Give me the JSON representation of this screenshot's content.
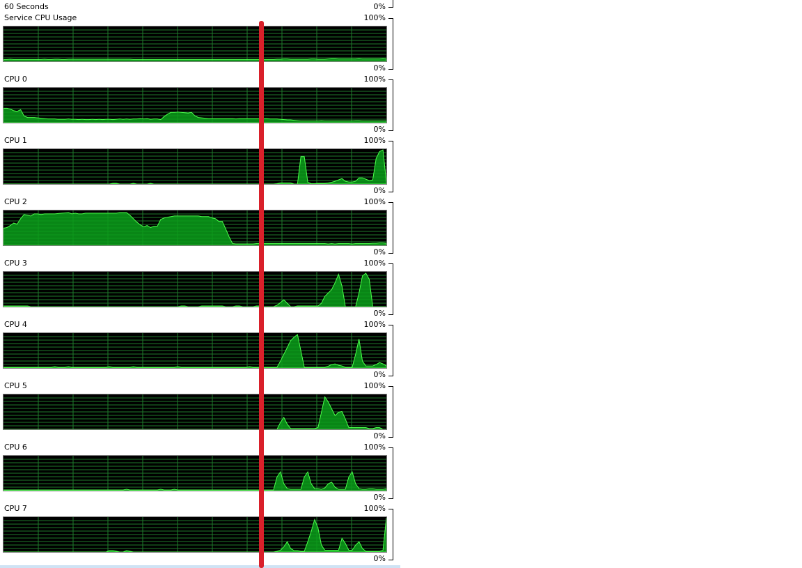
{
  "header": {
    "time_span": "60 Seconds",
    "top_pct": "0%"
  },
  "scale": {
    "max": "100%",
    "min": "0%"
  },
  "colors": {
    "grid": "#1f7a2c",
    "fill": "#0b9e1a",
    "line": "#4cff4c",
    "annotation": "#d9202a"
  },
  "graphs": [
    {
      "title": "Service CPU Usage",
      "usage": [
        5,
        5,
        6,
        5,
        5,
        5,
        5,
        5,
        5,
        5,
        5,
        5,
        6,
        5,
        5,
        6,
        6,
        5,
        5,
        6,
        6,
        6,
        6,
        6,
        6,
        6,
        6,
        6,
        6,
        6,
        6,
        6,
        6,
        6,
        6,
        6,
        6,
        6,
        5,
        5,
        5,
        5,
        5,
        5,
        5,
        5,
        5,
        5,
        5,
        5,
        5,
        5,
        5,
        5,
        5,
        5,
        5,
        5,
        5,
        5,
        5,
        5,
        5,
        5,
        5,
        5,
        5,
        5,
        5,
        5,
        5,
        5,
        5,
        5,
        5,
        5,
        5,
        5,
        5,
        5,
        6,
        6,
        7,
        7,
        6,
        6,
        6,
        6,
        6,
        6,
        7,
        7,
        6,
        6,
        6,
        7,
        8,
        8,
        7,
        7,
        7,
        7,
        7,
        7,
        8,
        7,
        7,
        7,
        7,
        7,
        7,
        8,
        7
      ]
    },
    {
      "title": "CPU 0",
      "usage": [
        42,
        42,
        40,
        35,
        33,
        38,
        20,
        15,
        15,
        15,
        14,
        13,
        12,
        11,
        11,
        11,
        10,
        10,
        10,
        11,
        10,
        10,
        9,
        10,
        9,
        9,
        10,
        9,
        10,
        9,
        10,
        10,
        9,
        10,
        11,
        10,
        11,
        10,
        11,
        11,
        12,
        11,
        12,
        10,
        11,
        11,
        9,
        18,
        25,
        30,
        30,
        31,
        30,
        29,
        28,
        30,
        20,
        15,
        14,
        13,
        12,
        12,
        12,
        12,
        12,
        12,
        12,
        12,
        11,
        12,
        12,
        12,
        12,
        12,
        12,
        12,
        12,
        12,
        11,
        11,
        11,
        10,
        9,
        8,
        8,
        7,
        6,
        5,
        5,
        5,
        5,
        5,
        5,
        6,
        5,
        5,
        5,
        5,
        5,
        5,
        5,
        5,
        5,
        6,
        6,
        5,
        5,
        5,
        5,
        5,
        5,
        5,
        5
      ]
    },
    {
      "title": "CPU 1",
      "usage": [
        0,
        0,
        0,
        0,
        0,
        0,
        0,
        0,
        0,
        0,
        0,
        0,
        0,
        0,
        0,
        0,
        0,
        0,
        0,
        0,
        0,
        0,
        0,
        0,
        0,
        0,
        0,
        0,
        0,
        0,
        0,
        0,
        2,
        2,
        0,
        0,
        0,
        0,
        2,
        0,
        0,
        0,
        0,
        2,
        0,
        0,
        0,
        0,
        0,
        0,
        0,
        0,
        0,
        0,
        0,
        0,
        0,
        0,
        0,
        0,
        0,
        0,
        0,
        0,
        0,
        0,
        0,
        0,
        0,
        0,
        0,
        0,
        0,
        0,
        0,
        0,
        0,
        0,
        0,
        0,
        1,
        3,
        3,
        3,
        3,
        0,
        0,
        80,
        80,
        5,
        1,
        1,
        2,
        2,
        2,
        3,
        5,
        8,
        12,
        16,
        8,
        6,
        6,
        8,
        18,
        18,
        14,
        10,
        12,
        75,
        95,
        100,
        6
      ]
    },
    {
      "title": "CPU 2",
      "usage": [
        50,
        52,
        58,
        65,
        62,
        78,
        90,
        88,
        86,
        92,
        92,
        90,
        92,
        92,
        92,
        92,
        93,
        94,
        95,
        96,
        92,
        94,
        92,
        92,
        94,
        94,
        94,
        94,
        94,
        94,
        94,
        94,
        94,
        94,
        96,
        96,
        96,
        88,
        78,
        68,
        60,
        54,
        58,
        52,
        56,
        56,
        76,
        80,
        82,
        84,
        86,
        86,
        86,
        86,
        86,
        86,
        86,
        86,
        84,
        84,
        84,
        80,
        78,
        70,
        70,
        48,
        25,
        5,
        4,
        4,
        4,
        4,
        4,
        4,
        5,
        5,
        5,
        5,
        5,
        5,
        5,
        5,
        5,
        5,
        5,
        5,
        5,
        5,
        5,
        5,
        5,
        5,
        5,
        5,
        5,
        4,
        5,
        4,
        5,
        5,
        5,
        5,
        4,
        5,
        5,
        5,
        5,
        5,
        6,
        6,
        7,
        7,
        6
      ]
    },
    {
      "title": "CPU 3",
      "usage": [
        2,
        2,
        2,
        2,
        2,
        2,
        2,
        2,
        0,
        0,
        0,
        0,
        0,
        0,
        0,
        0,
        0,
        0,
        0,
        0,
        0,
        0,
        0,
        0,
        0,
        0,
        0,
        0,
        0,
        0,
        0,
        0,
        0,
        0,
        0,
        0,
        0,
        0,
        0,
        0,
        0,
        0,
        0,
        0,
        0,
        0,
        0,
        0,
        0,
        0,
        0,
        0,
        2,
        2,
        0,
        0,
        0,
        0,
        2,
        2,
        2,
        2,
        2,
        2,
        2,
        0,
        0,
        0,
        2,
        2,
        0,
        0,
        0,
        0,
        2,
        2,
        0,
        0,
        0,
        0,
        4,
        12,
        20,
        10,
        0,
        0,
        2,
        2,
        2,
        2,
        2,
        2,
        2,
        10,
        30,
        40,
        50,
        70,
        95,
        60,
        0,
        0,
        0,
        0,
        40,
        90,
        98,
        80,
        0,
        0,
        0,
        0,
        0
      ]
    },
    {
      "title": "CPU 4",
      "usage": [
        2,
        2,
        2,
        2,
        2,
        2,
        2,
        2,
        2,
        2,
        2,
        2,
        2,
        2,
        2,
        4,
        2,
        2,
        2,
        4,
        2,
        2,
        2,
        2,
        2,
        2,
        2,
        2,
        2,
        2,
        2,
        4,
        2,
        2,
        2,
        2,
        2,
        2,
        4,
        2,
        2,
        2,
        2,
        2,
        2,
        2,
        2,
        2,
        2,
        2,
        2,
        4,
        2,
        2,
        2,
        2,
        2,
        2,
        2,
        2,
        2,
        2,
        2,
        2,
        2,
        2,
        2,
        2,
        2,
        2,
        2,
        2,
        4,
        2,
        2,
        2,
        2,
        2,
        2,
        2,
        2,
        20,
        40,
        60,
        80,
        90,
        98,
        50,
        2,
        2,
        2,
        2,
        2,
        2,
        2,
        5,
        10,
        12,
        8,
        6,
        2,
        2,
        2,
        40,
        85,
        20,
        6,
        6,
        6,
        10,
        16,
        12,
        6
      ]
    },
    {
      "title": "CPU 5",
      "usage": [
        0,
        0,
        0,
        0,
        0,
        0,
        0,
        0,
        0,
        0,
        0,
        0,
        0,
        0,
        0,
        0,
        0,
        0,
        0,
        0,
        0,
        0,
        0,
        0,
        0,
        0,
        0,
        0,
        0,
        0,
        0,
        0,
        0,
        0,
        0,
        0,
        0,
        0,
        0,
        0,
        0,
        0,
        0,
        0,
        0,
        0,
        0,
        0,
        0,
        0,
        0,
        0,
        0,
        0,
        0,
        0,
        0,
        0,
        0,
        0,
        0,
        0,
        0,
        0,
        0,
        0,
        0,
        0,
        0,
        0,
        0,
        0,
        0,
        0,
        0,
        0,
        0,
        0,
        0,
        0,
        0,
        20,
        35,
        15,
        2,
        2,
        2,
        2,
        2,
        2,
        2,
        2,
        5,
        50,
        95,
        80,
        60,
        40,
        50,
        52,
        30,
        5,
        5,
        5,
        5,
        5,
        5,
        2,
        2,
        5,
        5,
        0,
        0
      ]
    },
    {
      "title": "CPU 6",
      "usage": [
        2,
        2,
        2,
        2,
        2,
        2,
        2,
        2,
        2,
        2,
        2,
        2,
        2,
        2,
        2,
        2,
        2,
        2,
        2,
        2,
        2,
        2,
        2,
        2,
        2,
        2,
        2,
        2,
        2,
        2,
        2,
        2,
        2,
        2,
        2,
        2,
        4,
        2,
        2,
        2,
        2,
        2,
        2,
        2,
        2,
        2,
        4,
        2,
        2,
        2,
        4,
        2,
        2,
        2,
        2,
        2,
        2,
        2,
        2,
        2,
        2,
        2,
        2,
        2,
        2,
        2,
        2,
        2,
        2,
        2,
        2,
        2,
        2,
        2,
        2,
        2,
        2,
        2,
        2,
        2,
        40,
        55,
        20,
        6,
        4,
        4,
        4,
        4,
        40,
        55,
        20,
        6,
        6,
        4,
        8,
        20,
        25,
        10,
        4,
        4,
        4,
        40,
        55,
        20,
        6,
        4,
        4,
        6,
        6,
        4,
        4,
        4,
        6
      ]
    },
    {
      "title": "CPU 7",
      "usage": [
        0,
        0,
        0,
        0,
        0,
        0,
        0,
        0,
        0,
        0,
        0,
        0,
        0,
        0,
        0,
        0,
        0,
        0,
        0,
        0,
        0,
        0,
        0,
        0,
        0,
        0,
        0,
        0,
        0,
        0,
        0,
        4,
        4,
        2,
        0,
        0,
        4,
        2,
        0,
        0,
        0,
        0,
        0,
        0,
        0,
        0,
        0,
        0,
        0,
        0,
        0,
        0,
        0,
        0,
        0,
        0,
        0,
        0,
        0,
        0,
        0,
        0,
        0,
        0,
        0,
        0,
        0,
        0,
        0,
        0,
        0,
        0,
        0,
        0,
        0,
        0,
        0,
        0,
        0,
        0,
        2,
        5,
        15,
        30,
        10,
        4,
        4,
        2,
        2,
        30,
        60,
        95,
        70,
        20,
        5,
        5,
        5,
        5,
        5,
        40,
        25,
        5,
        5,
        20,
        30,
        10,
        2,
        2,
        2,
        2,
        2,
        5,
        100
      ]
    }
  ]
}
